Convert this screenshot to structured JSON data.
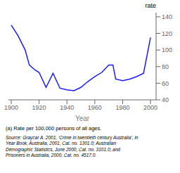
{
  "chart_data": {
    "type": "line",
    "x_label": "Year",
    "y_label": "rate",
    "x": [
      1900,
      1905,
      1910,
      1913,
      1917,
      1920,
      1925,
      1930,
      1935,
      1940,
      1945,
      1950,
      1955,
      1960,
      1965,
      1970,
      1973,
      1975,
      1980,
      1985,
      1990,
      1995,
      2000
    ],
    "values": [
      130,
      117,
      100,
      82,
      76,
      73,
      55,
      72,
      54,
      52,
      51,
      55,
      62,
      68,
      73,
      82,
      82,
      65,
      63,
      65,
      68,
      72,
      115
    ],
    "color": "#1a1aff",
    "xlim": [
      1898,
      2004
    ],
    "ylim": [
      40,
      145
    ],
    "xticks": [
      1900,
      1920,
      1940,
      1960,
      1980,
      2000
    ],
    "yticks": [
      40,
      60,
      80,
      100,
      120,
      140
    ],
    "grid": false,
    "annotations": [
      "(a) Rate per 100,000 persons of all ages.",
      "Source: Graycar A. 2001, ‘Crime in twentieth century Australia’, in",
      "Year Book, Australia, 2001, Cat. no. 1301.0; Australian",
      "Demographic Statistics, June 2000, Cat. no. 3101.0; and",
      "Prisoners in Australia, 2000, Cat. no. 4517.0."
    ]
  }
}
